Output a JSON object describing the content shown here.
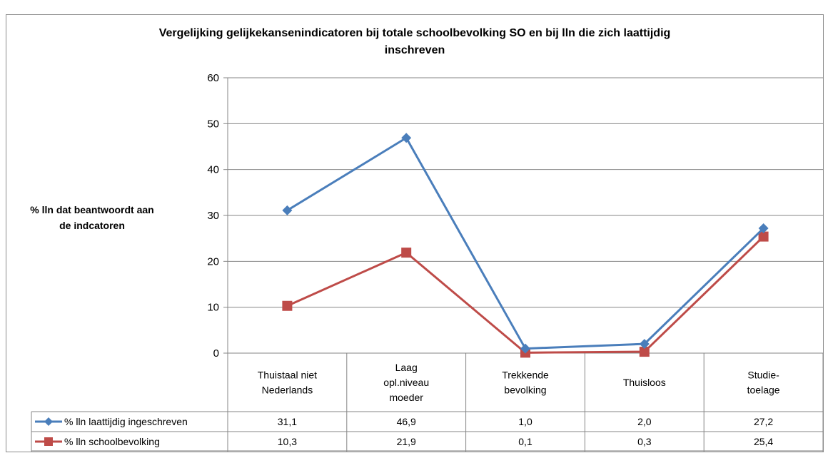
{
  "chart_data": {
    "type": "line",
    "title_lines": [
      "Vergelijking gelijkekansenindicatoren bij totale schoolbevolking SO en bij lln die zich laattijdig",
      "inschreven"
    ],
    "ylabel_lines": [
      "% lln dat beantwoordt aan",
      "de indcatoren"
    ],
    "xlabel": "",
    "ylim": [
      0,
      60
    ],
    "yticks": [
      0,
      10,
      20,
      30,
      40,
      50,
      60
    ],
    "grid": true,
    "legend_placement": "data-table-left",
    "categories": [
      [
        "Thuistaal niet",
        "Nederlands"
      ],
      [
        "Laag",
        "opl.niveau",
        "moeder"
      ],
      [
        "Trekkende",
        "bevolking"
      ],
      [
        "Thuisloos"
      ],
      [
        "Studie-",
        "toelage"
      ]
    ],
    "series": [
      {
        "name": "% lln laattijdig ingeschreven",
        "values": [
          31.1,
          46.9,
          1.0,
          2.0,
          27.2
        ],
        "labels": [
          "31,1",
          "46,9",
          "1,0",
          "2,0",
          "27,2"
        ],
        "color": "#4a7ebb",
        "marker": "diamond"
      },
      {
        "name": "% lln schoolbevolking",
        "values": [
          10.3,
          21.9,
          0.1,
          0.3,
          25.4
        ],
        "labels": [
          "10,3",
          "21,9",
          "0,1",
          "0,3",
          "25,4"
        ],
        "color": "#be4b48",
        "marker": "square"
      }
    ]
  },
  "colors": {
    "grid": "#868686",
    "axis": "#868686",
    "table_border": "#868686"
  }
}
